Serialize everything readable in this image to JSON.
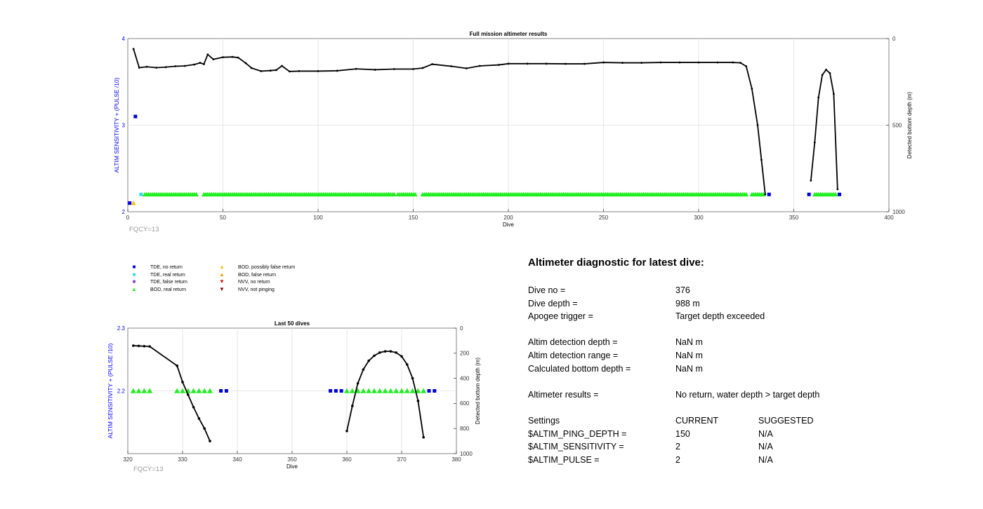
{
  "chart_data": [
    {
      "type": "scatter",
      "title": "Full mission altimeter results",
      "xlabel": "Dive",
      "ylabel": "ALTIM SENSITIVITY + (PULSE /10)",
      "y2label": "Detected bottom depth (m)",
      "xlim": [
        0,
        400
      ],
      "ylim": [
        2,
        4
      ],
      "y2lim": [
        1000,
        0
      ],
      "xticks": [
        "0",
        "50",
        "100",
        "150",
        "200",
        "250",
        "300",
        "350",
        "400"
      ],
      "yticks": [
        "2",
        "3",
        "4"
      ],
      "y2ticks": [
        "1000",
        "500",
        "0"
      ],
      "grid": true,
      "annotation": "FQCY=13",
      "bottom_depth_series": {
        "x": [
          3,
          6,
          10,
          15,
          20,
          25,
          30,
          35,
          38,
          40,
          42,
          45,
          50,
          55,
          58,
          62,
          65,
          70,
          75,
          78,
          81,
          85,
          90,
          100,
          110,
          120,
          130,
          140,
          150,
          155,
          160,
          170,
          178,
          185,
          195,
          200,
          210,
          220,
          230,
          240,
          250,
          260,
          270,
          280,
          290,
          300,
          310,
          318,
          322,
          325,
          328,
          331,
          333,
          335
        ],
        "y": [
          60,
          168,
          163,
          168,
          165,
          160,
          158,
          150,
          140,
          148,
          92,
          120,
          108,
          106,
          110,
          142,
          170,
          188,
          185,
          182,
          158,
          190,
          188,
          188,
          186,
          175,
          180,
          176,
          176,
          170,
          148,
          160,
          172,
          158,
          152,
          145,
          145,
          145,
          146,
          146,
          138,
          140,
          140,
          138,
          138,
          138,
          138,
          138,
          140,
          160,
          290,
          500,
          700,
          900
        ]
      },
      "bottom_depth_series_2": {
        "x": [
          359,
          361,
          363,
          365,
          367,
          369,
          371,
          373
        ],
        "y": [
          820,
          600,
          340,
          210,
          180,
          200,
          320,
          870
        ]
      },
      "tde_no_return": [
        {
          "x": 1,
          "y": 2.1
        },
        {
          "x": 4,
          "y": 3.1
        },
        {
          "x": 337,
          "y": 2.2
        },
        {
          "x": 358,
          "y": 2.2
        },
        {
          "x": 374,
          "y": 2.2
        }
      ],
      "tde_real_return": [
        {
          "x": 7,
          "y": 2.2
        }
      ],
      "bod_real_return_ranges": [
        [
          9,
          36
        ],
        [
          40,
          140
        ],
        [
          142,
          151
        ],
        [
          155,
          325
        ],
        [
          328,
          334
        ],
        [
          361,
          372
        ]
      ],
      "bod_possibly_false_return": [
        {
          "x": 3,
          "y": 2.1
        }
      ]
    },
    {
      "type": "scatter",
      "title": "Last 50 dives",
      "xlabel": "Dive",
      "ylabel": "ALTIM SENSITIVITY + (PULSE /10)",
      "y2label": "Detected bottom depth (m)",
      "xlim": [
        320,
        380
      ],
      "ylim": [
        2.1,
        2.3
      ],
      "y2lim": [
        1000,
        0
      ],
      "xticks": [
        "320",
        "330",
        "340",
        "350",
        "360",
        "370",
        "380"
      ],
      "yticks": [
        "2.2",
        "2.3"
      ],
      "y2ticks": [
        "1000",
        "800",
        "600",
        "400",
        "200",
        "0"
      ],
      "grid": true,
      "annotation": "FQCY=13",
      "bottom_depth_series": {
        "x": [
          321,
          322,
          323,
          324,
          329,
          330,
          331,
          332,
          333,
          334,
          335
        ],
        "y": [
          140,
          142,
          144,
          146,
          300,
          430,
          530,
          630,
          720,
          800,
          900
        ]
      },
      "bottom_depth_series_2": {
        "x": [
          360,
          361,
          362,
          363,
          364,
          365,
          366,
          367,
          368,
          369,
          370,
          371,
          372,
          373,
          374
        ],
        "y": [
          820,
          620,
          440,
          330,
          260,
          220,
          195,
          185,
          185,
          195,
          225,
          290,
          400,
          580,
          870
        ]
      },
      "tde_no_return": [
        {
          "x": 337,
          "y": 2.2
        },
        {
          "x": 338,
          "y": 2.2
        },
        {
          "x": 357,
          "y": 2.2
        },
        {
          "x": 358,
          "y": 2.2
        },
        {
          "x": 359,
          "y": 2.2
        },
        {
          "x": 375,
          "y": 2.2
        },
        {
          "x": 376,
          "y": 2.2
        }
      ],
      "bod_real_return": [
        {
          "x": 321,
          "y": 2.2
        },
        {
          "x": 322,
          "y": 2.2
        },
        {
          "x": 323,
          "y": 2.2
        },
        {
          "x": 324,
          "y": 2.2
        },
        {
          "x": 329,
          "y": 2.2
        },
        {
          "x": 330,
          "y": 2.2
        },
        {
          "x": 331,
          "y": 2.2
        },
        {
          "x": 332,
          "y": 2.2
        },
        {
          "x": 333,
          "y": 2.2
        },
        {
          "x": 334,
          "y": 2.2
        },
        {
          "x": 335,
          "y": 2.2
        },
        {
          "x": 360,
          "y": 2.2
        },
        {
          "x": 361,
          "y": 2.2
        },
        {
          "x": 362,
          "y": 2.2
        },
        {
          "x": 363,
          "y": 2.2
        },
        {
          "x": 364,
          "y": 2.2
        },
        {
          "x": 365,
          "y": 2.2
        },
        {
          "x": 366,
          "y": 2.2
        },
        {
          "x": 367,
          "y": 2.2
        },
        {
          "x": 368,
          "y": 2.2
        },
        {
          "x": 369,
          "y": 2.2
        },
        {
          "x": 370,
          "y": 2.2
        },
        {
          "x": 371,
          "y": 2.2
        },
        {
          "x": 372,
          "y": 2.2
        },
        {
          "x": 373,
          "y": 2.2
        },
        {
          "x": 374,
          "y": 2.2
        }
      ]
    }
  ],
  "legend": [
    {
      "label": "TDE, no return",
      "color": "#0000dd",
      "marker": "square"
    },
    {
      "label": "TDE, real return",
      "color": "#33dddd",
      "marker": "square"
    },
    {
      "label": "TDE, false return",
      "color": "#8844cc",
      "marker": "square"
    },
    {
      "label": "BOD, real return",
      "color": "#22ee22",
      "marker": "triangle-up"
    },
    {
      "label": "BOD, possibly false return",
      "color": "#f4c20d",
      "marker": "triangle-up"
    },
    {
      "label": "BOD, false return",
      "color": "#f39c12",
      "marker": "triangle-up"
    },
    {
      "label": "NVV, no return",
      "color": "#dd1111",
      "marker": "triangle-down"
    },
    {
      "label": "NVV, not pinging",
      "color": "#8b0000",
      "marker": "triangle-down"
    }
  ],
  "colors": {
    "axis_left": "#0000ff",
    "depth_line": "#000000",
    "grid": "#e0e0e0",
    "annotation": "#999999"
  },
  "diagnostic": {
    "title": "Altimeter diagnostic for latest dive:",
    "dive_no": {
      "label": "Dive no =",
      "value": "376"
    },
    "dive_depth": {
      "label": "Dive depth =",
      "value": "988 m"
    },
    "apogee_trigger": {
      "label": "Apogee trigger =",
      "value": "Target depth exceeded"
    },
    "altim_detection_depth": {
      "label": "Altim detection depth =",
      "value": "NaN m"
    },
    "altim_detection_range": {
      "label": "Altim detection range =",
      "value": "NaN m"
    },
    "calculated_bottom_depth": {
      "label": "Calculated bottom depth =",
      "value": "NaN m"
    },
    "altimeter_results": {
      "label": "Altimeter results =",
      "value": "No return, water depth > target depth"
    },
    "settings_header": {
      "label": "Settings",
      "current": "CURRENT",
      "suggested": "SUGGESTED"
    },
    "settings": [
      {
        "name": "$ALTIM_PING_DEPTH =",
        "current": "150",
        "suggested": "N/A"
      },
      {
        "name": "$ALTIM_SENSITIVITY =",
        "current": "2",
        "suggested": "N/A"
      },
      {
        "name": "$ALTIM_PULSE =",
        "current": "2",
        "suggested": "N/A"
      }
    ]
  }
}
